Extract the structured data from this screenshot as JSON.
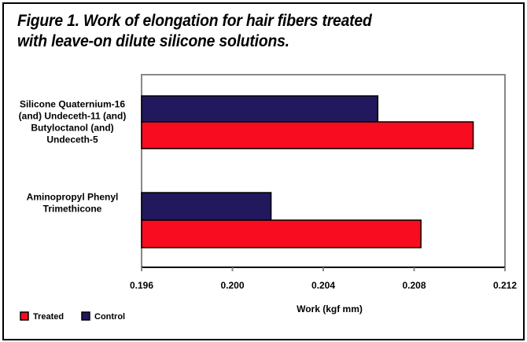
{
  "title_line1": "Figure 1. Work of elongation for hair fibers treated",
  "title_line2": "with leave-on dilute silicone solutions.",
  "colors": {
    "treated": "#f80c20",
    "control": "#21185e"
  },
  "chart_data": {
    "type": "bar",
    "orientation": "horizontal",
    "categories": [
      [
        "Silicone Quaternium-16",
        "(and) Undeceth-11 (and)",
        "Butyloctanol (and)",
        "Undeceth-5"
      ],
      [
        "Aminopropyl Phenyl",
        "Trimethicone"
      ]
    ],
    "series": [
      {
        "name": "Control",
        "values": [
          0.2064,
          0.2017
        ]
      },
      {
        "name": "Treated",
        "values": [
          0.2106,
          0.2083
        ]
      }
    ],
    "xlabel": "Work (kgf mm)",
    "xlim": [
      0.196,
      0.212
    ],
    "xticks": [
      "0.196",
      "0.200",
      "0.204",
      "0.208",
      "0.212"
    ],
    "grid": false,
    "legend": {
      "placement": "bottom-left",
      "entries": [
        "Treated",
        "Control"
      ]
    }
  }
}
